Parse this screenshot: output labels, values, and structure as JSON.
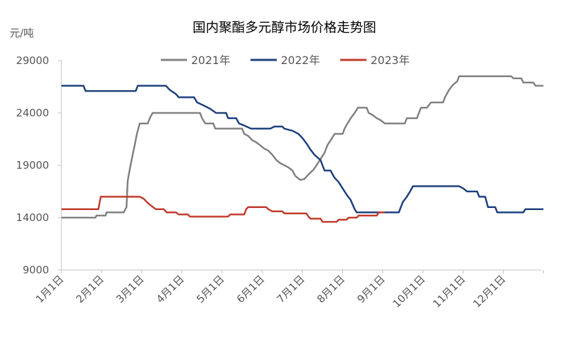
{
  "chart_data": {
    "type": "line",
    "title": "国内聚酯多元醇市场价格走势图",
    "ylabel": "元/吨",
    "xlabel": "",
    "ylim": [
      9000,
      29000
    ],
    "yticks": [
      9000,
      14000,
      19000,
      24000,
      29000
    ],
    "ytick_labels": [
      "9000",
      "14000",
      "19000",
      "24000",
      "29000"
    ],
    "x_domain": [
      0,
      12
    ],
    "categories": [
      "1月1日",
      "2月1日",
      "3月1日",
      "4月1日",
      "5月1日",
      "6月1日",
      "7月1日",
      "8月1日",
      "9月1日",
      "10月1日",
      "11月1日",
      "12月1日"
    ],
    "grid": false,
    "legend_position": "top",
    "series": [
      {
        "name": "2021年",
        "color": "#808080",
        "points": [
          [
            0,
            14000
          ],
          [
            0.85,
            14000
          ],
          [
            0.87,
            14200
          ],
          [
            1.1,
            14200
          ],
          [
            1.12,
            14500
          ],
          [
            1.55,
            14500
          ],
          [
            1.62,
            15000
          ],
          [
            1.65,
            17500
          ],
          [
            1.72,
            19000
          ],
          [
            1.8,
            20500
          ],
          [
            1.88,
            22000
          ],
          [
            1.95,
            23000
          ],
          [
            2.15,
            23000
          ],
          [
            2.2,
            23500
          ],
          [
            2.27,
            24000
          ],
          [
            3.45,
            24000
          ],
          [
            3.5,
            23500
          ],
          [
            3.58,
            23000
          ],
          [
            3.78,
            23000
          ],
          [
            3.83,
            22500
          ],
          [
            4.5,
            22500
          ],
          [
            4.55,
            22000
          ],
          [
            4.65,
            21800
          ],
          [
            4.75,
            21400
          ],
          [
            4.85,
            21200
          ],
          [
            4.95,
            20900
          ],
          [
            5.05,
            20600
          ],
          [
            5.15,
            20400
          ],
          [
            5.25,
            20000
          ],
          [
            5.35,
            19500
          ],
          [
            5.45,
            19200
          ],
          [
            5.55,
            19000
          ],
          [
            5.65,
            18800
          ],
          [
            5.75,
            18500
          ],
          [
            5.82,
            18000
          ],
          [
            5.88,
            17800
          ],
          [
            5.95,
            17600
          ],
          [
            6.05,
            17700
          ],
          [
            6.12,
            18000
          ],
          [
            6.2,
            18300
          ],
          [
            6.28,
            18600
          ],
          [
            6.35,
            19000
          ],
          [
            6.45,
            19600
          ],
          [
            6.55,
            20200
          ],
          [
            6.62,
            20900
          ],
          [
            6.72,
            21500
          ],
          [
            6.8,
            22000
          ],
          [
            7.0,
            22000
          ],
          [
            7.05,
            22500
          ],
          [
            7.12,
            23000
          ],
          [
            7.22,
            23600
          ],
          [
            7.3,
            24000
          ],
          [
            7.38,
            24500
          ],
          [
            7.6,
            24500
          ],
          [
            7.65,
            24000
          ],
          [
            7.75,
            23800
          ],
          [
            7.85,
            23500
          ],
          [
            7.95,
            23300
          ],
          [
            8.05,
            23000
          ],
          [
            8.55,
            23000
          ],
          [
            8.6,
            23500
          ],
          [
            8.85,
            23500
          ],
          [
            8.95,
            24500
          ],
          [
            9.1,
            24500
          ],
          [
            9.2,
            25000
          ],
          [
            9.5,
            25000
          ],
          [
            9.55,
            25500
          ],
          [
            9.65,
            26200
          ],
          [
            9.75,
            26700
          ],
          [
            9.85,
            27000
          ],
          [
            9.9,
            27500
          ],
          [
            11.2,
            27500
          ],
          [
            11.25,
            27300
          ],
          [
            11.45,
            27300
          ],
          [
            11.5,
            26900
          ],
          [
            11.75,
            26900
          ],
          [
            11.8,
            26600
          ],
          [
            12.0,
            26600
          ]
        ]
      },
      {
        "name": "2022年",
        "color": "#1b3f7c",
        "points": [
          [
            0,
            26600
          ],
          [
            0.55,
            26600
          ],
          [
            0.6,
            26100
          ],
          [
            1.85,
            26100
          ],
          [
            1.9,
            26600
          ],
          [
            2.6,
            26600
          ],
          [
            2.7,
            26200
          ],
          [
            2.85,
            25800
          ],
          [
            2.92,
            25500
          ],
          [
            3.3,
            25500
          ],
          [
            3.38,
            25000
          ],
          [
            3.55,
            24700
          ],
          [
            3.7,
            24400
          ],
          [
            3.85,
            24000
          ],
          [
            4.1,
            24000
          ],
          [
            4.15,
            23500
          ],
          [
            4.35,
            23500
          ],
          [
            4.42,
            23000
          ],
          [
            4.55,
            22800
          ],
          [
            4.72,
            22500
          ],
          [
            5.2,
            22500
          ],
          [
            5.3,
            22700
          ],
          [
            5.5,
            22700
          ],
          [
            5.55,
            22500
          ],
          [
            5.75,
            22300
          ],
          [
            5.9,
            22000
          ],
          [
            6.0,
            21600
          ],
          [
            6.1,
            21100
          ],
          [
            6.2,
            20500
          ],
          [
            6.3,
            20000
          ],
          [
            6.45,
            19500
          ],
          [
            6.55,
            18500
          ],
          [
            6.7,
            18500
          ],
          [
            6.8,
            17800
          ],
          [
            6.9,
            17400
          ],
          [
            7.0,
            16800
          ],
          [
            7.1,
            16200
          ],
          [
            7.2,
            15700
          ],
          [
            7.3,
            14800
          ],
          [
            7.35,
            14500
          ],
          [
            8.4,
            14500
          ],
          [
            8.5,
            15500
          ],
          [
            8.6,
            16000
          ],
          [
            8.68,
            16500
          ],
          [
            8.75,
            17000
          ],
          [
            9.9,
            17000
          ],
          [
            10.0,
            16800
          ],
          [
            10.1,
            16500
          ],
          [
            10.35,
            16500
          ],
          [
            10.4,
            16000
          ],
          [
            10.55,
            16000
          ],
          [
            10.62,
            15000
          ],
          [
            10.8,
            15000
          ],
          [
            10.85,
            14500
          ],
          [
            11.5,
            14500
          ],
          [
            11.55,
            14800
          ],
          [
            12.0,
            14800
          ]
        ]
      },
      {
        "name": "2023年",
        "color": "#c0392b",
        "points": [
          [
            0,
            14800
          ],
          [
            0.92,
            14800
          ],
          [
            0.98,
            16000
          ],
          [
            1.95,
            16000
          ],
          [
            2.05,
            15800
          ],
          [
            2.15,
            15400
          ],
          [
            2.28,
            15000
          ],
          [
            2.35,
            14800
          ],
          [
            2.55,
            14800
          ],
          [
            2.62,
            14500
          ],
          [
            2.85,
            14500
          ],
          [
            2.92,
            14300
          ],
          [
            3.15,
            14300
          ],
          [
            3.2,
            14100
          ],
          [
            4.15,
            14100
          ],
          [
            4.2,
            14300
          ],
          [
            4.55,
            14300
          ],
          [
            4.6,
            14800
          ],
          [
            4.65,
            15000
          ],
          [
            5.1,
            15000
          ],
          [
            5.15,
            14800
          ],
          [
            5.25,
            14600
          ],
          [
            5.5,
            14600
          ],
          [
            5.55,
            14400
          ],
          [
            6.1,
            14400
          ],
          [
            6.15,
            14100
          ],
          [
            6.2,
            13900
          ],
          [
            6.45,
            13900
          ],
          [
            6.5,
            13600
          ],
          [
            6.85,
            13600
          ],
          [
            6.9,
            13800
          ],
          [
            7.1,
            13800
          ],
          [
            7.15,
            14000
          ],
          [
            7.35,
            14000
          ],
          [
            7.4,
            14200
          ],
          [
            7.85,
            14200
          ],
          [
            7.9,
            14500
          ],
          [
            8.05,
            14500
          ]
        ]
      }
    ]
  }
}
